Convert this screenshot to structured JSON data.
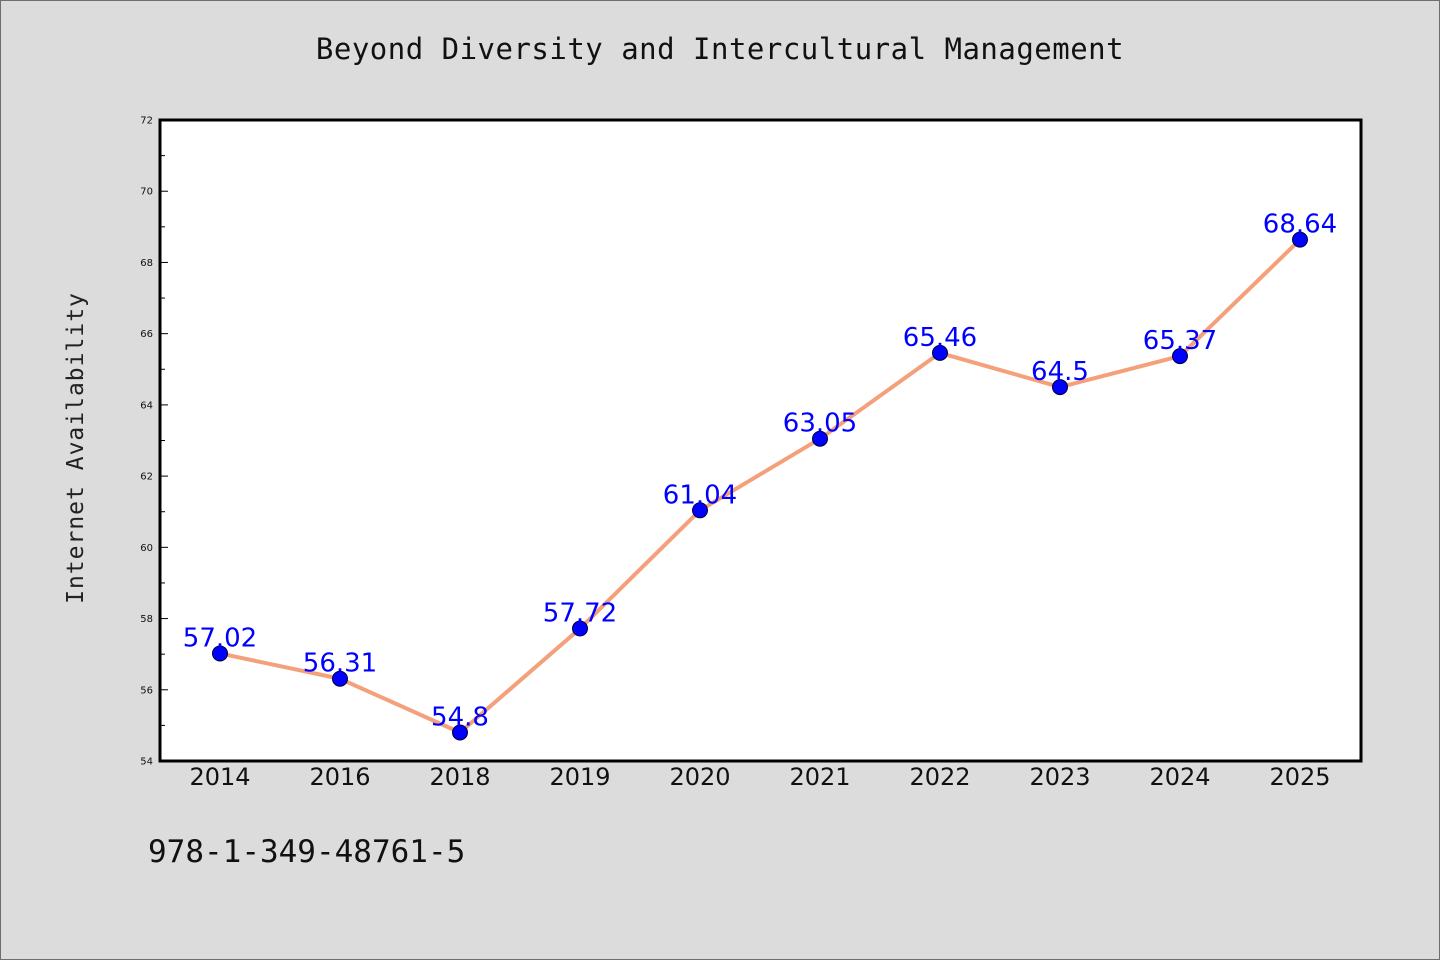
{
  "chart_data": {
    "type": "line",
    "title": "Beyond Diversity and Intercultural Management",
    "xlabel": "",
    "ylabel": "Internet Availability",
    "categories": [
      "2014",
      "2016",
      "2018",
      "2019",
      "2020",
      "2021",
      "2022",
      "2023",
      "2024",
      "2025"
    ],
    "series": [
      {
        "values": [
          57.02,
          56.31,
          54.8,
          57.72,
          61.04,
          63.05,
          65.46,
          64.5,
          65.37,
          68.64
        ],
        "line_color": "#f4a07a",
        "marker_color": "#0000ff",
        "label_color": "#0000ff"
      }
    ],
    "data_labels": [
      "57.02",
      "56.31",
      "54.8",
      "57.72",
      "61.04",
      "63.05",
      "65.46",
      "64.5",
      "65.37",
      "68.64"
    ],
    "ylim": [
      54,
      72
    ],
    "yticks": [
      "54",
      "56",
      "58",
      "60",
      "62",
      "64",
      "66",
      "68",
      "70",
      "72"
    ],
    "grid": false,
    "legend": "none"
  },
  "footer": {
    "isbn": "978-1-349-48761-5"
  },
  "colors": {
    "background": "#dcdcdc",
    "plot_area": "#ffffff"
  }
}
